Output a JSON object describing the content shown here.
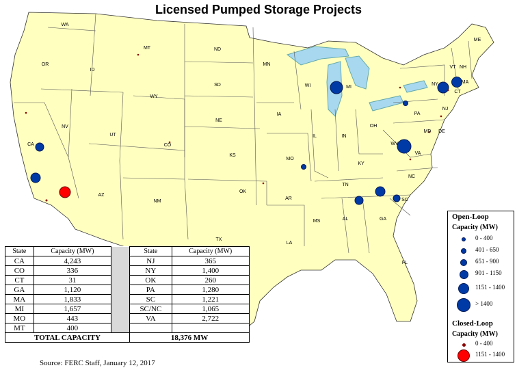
{
  "title": "Licensed Pumped Storage Projects",
  "colors": {
    "land": "#ffffc0",
    "water": "#a8d8f0",
    "open_loop": "#003aa6",
    "closed_loop_small": "#8b0000",
    "closed_loop_large": "#ff0000"
  },
  "state_labels": [
    "WA",
    "OR",
    "ID",
    "MT",
    "ND",
    "SD",
    "WY",
    "NV",
    "CA",
    "UT",
    "CO",
    "NE",
    "KS",
    "AZ",
    "NM",
    "OK",
    "TX",
    "MN",
    "IA",
    "MO",
    "AR",
    "LA",
    "WI",
    "IL",
    "MI",
    "IN",
    "OH",
    "KY",
    "TN",
    "MS",
    "AL",
    "GA",
    "FL",
    "SC",
    "NC",
    "VA",
    "WV",
    "PA",
    "NY",
    "VT",
    "NH",
    "ME",
    "MA",
    "CT",
    "NJ",
    "MD",
    "DE"
  ],
  "map_points_label_note": "",
  "table": {
    "headers": [
      "State",
      "Capacity (MW)",
      "State",
      "Capacity (MW)"
    ],
    "left": [
      [
        "CA",
        "4,243"
      ],
      [
        "CO",
        "336"
      ],
      [
        "CT",
        "31"
      ],
      [
        "GA",
        "1,120"
      ],
      [
        "MA",
        "1,833"
      ],
      [
        "MI",
        "1,657"
      ],
      [
        "MO",
        "443"
      ],
      [
        "MT",
        "400"
      ]
    ],
    "right": [
      [
        "NJ",
        "365"
      ],
      [
        "NY",
        "1,400"
      ],
      [
        "OK",
        "260"
      ],
      [
        "PA",
        "1,280"
      ],
      [
        "SC",
        "1,221"
      ],
      [
        "SC/NC",
        "1,065"
      ],
      [
        "VA",
        "2,722"
      ]
    ],
    "total_label": "TOTAL CAPACITY",
    "total_value": "18,376 MW"
  },
  "source": "Source:  FERC Staff, January 12, 2017",
  "legend": {
    "open_title": "Open-Loop",
    "open_sub": "Capacity (MW)",
    "open_items": [
      "0 - 400",
      "401 - 650",
      "651 - 900",
      "901 - 1150",
      "1151 - 1400",
      "> 1400"
    ],
    "closed_title": "Closed-Loop",
    "closed_sub": "Capacity (MW)",
    "closed_items": [
      "0 - 400",
      "1151 - 1400"
    ]
  }
}
